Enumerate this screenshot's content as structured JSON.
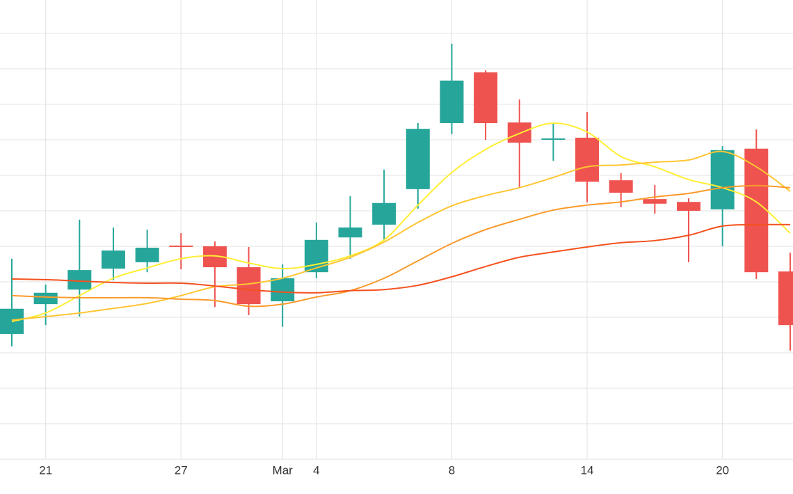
{
  "chart_data": {
    "type": "candlestick",
    "categories": [
      null,
      "21",
      null,
      null,
      null,
      "27",
      null,
      null,
      "Mar",
      "4",
      null,
      null,
      null,
      "8",
      null,
      null,
      null,
      "14",
      null,
      null,
      null,
      "20",
      null,
      null
    ],
    "open": [
      3.53,
      4.37,
      4.78,
      5.37,
      5.55,
      6.02,
      6.0,
      5.41,
      4.45,
      5.27,
      6.25,
      6.61,
      7.61,
      9.47,
      10.9,
      9.49,
      9.0,
      9.06,
      7.86,
      7.33,
      7.25,
      7.04,
      8.75,
      5.29
    ],
    "high": [
      5.65,
      4.92,
      6.75,
      6.53,
      6.47,
      6.37,
      6.14,
      5.98,
      5.49,
      6.67,
      7.41,
      8.16,
      9.47,
      11.71,
      10.96,
      10.14,
      9.49,
      9.78,
      8.06,
      7.73,
      7.35,
      8.82,
      9.29,
      5.82
    ],
    "low": [
      3.18,
      3.78,
      4.02,
      5.04,
      5.27,
      5.35,
      4.29,
      4.06,
      3.73,
      5.1,
      5.65,
      6.16,
      7.06,
      9.16,
      9.0,
      7.67,
      8.41,
      7.24,
      7.1,
      6.92,
      5.55,
      6.0,
      5.08,
      3.06
    ],
    "close": [
      4.24,
      4.69,
      5.33,
      5.88,
      5.96,
      6.0,
      5.41,
      4.37,
      5.1,
      6.18,
      6.53,
      7.22,
      9.31,
      10.67,
      9.47,
      8.92,
      9.04,
      7.82,
      7.51,
      7.2,
      7.0,
      8.71,
      5.27,
      3.78
    ],
    "increasing_color": "#26a69a",
    "decreasing_color": "#ef5350",
    "series": [
      {
        "color": "#ffee33",
        "values": [
          3.88,
          4.12,
          4.61,
          5.1,
          5.39,
          5.65,
          5.73,
          5.53,
          5.37,
          5.49,
          5.73,
          6.18,
          7.16,
          8.08,
          8.73,
          9.18,
          9.47,
          9.22,
          8.53,
          8.24,
          7.88,
          7.65,
          7.25,
          6.37
        ]
      },
      {
        "color": "#ffc533",
        "values": [
          3.92,
          4.02,
          4.12,
          4.25,
          4.39,
          4.61,
          4.86,
          4.94,
          5.1,
          5.39,
          5.69,
          6.12,
          6.67,
          7.14,
          7.43,
          7.65,
          7.94,
          8.24,
          8.29,
          8.37,
          8.43,
          8.67,
          8.24,
          7.55
        ]
      },
      {
        "color": "#fb9a2c",
        "values": [
          4.61,
          4.57,
          4.55,
          4.55,
          4.55,
          4.51,
          4.47,
          4.31,
          4.37,
          4.57,
          4.75,
          5.1,
          5.59,
          6.08,
          6.47,
          6.76,
          7.02,
          7.16,
          7.25,
          7.39,
          7.49,
          7.65,
          7.71,
          7.65
        ]
      },
      {
        "color": "#f4511e",
        "values": [
          5.08,
          5.06,
          5.02,
          4.98,
          4.96,
          4.96,
          4.88,
          4.78,
          4.71,
          4.69,
          4.75,
          4.78,
          4.9,
          5.14,
          5.43,
          5.69,
          5.84,
          5.98,
          6.1,
          6.16,
          6.31,
          6.57,
          6.61,
          6.61
        ]
      }
    ],
    "ylim": [
      0,
      12.94
    ],
    "ygrid": [
      0,
      1,
      2,
      3,
      4,
      5,
      6,
      7,
      8,
      9,
      10,
      11,
      12
    ],
    "grid": true
  }
}
